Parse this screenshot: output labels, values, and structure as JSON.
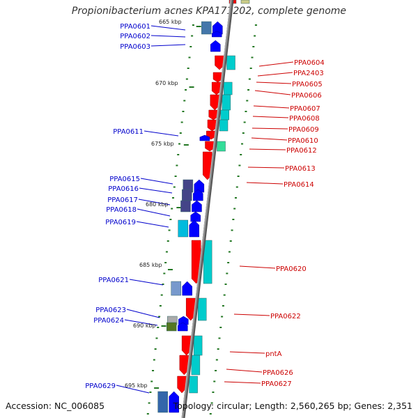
{
  "title": "Propionibacterium acnes KPA171202, complete genome",
  "accession_text": "Accession: NC_006085",
  "topology_text": "Topology: circular; Length: 2,560,265 bp; Genes: 2,351",
  "colors": {
    "backbone": "#888888",
    "forward_gene": "#ff0000",
    "reverse_gene": "#0000ff",
    "cds_forward": "#00cccc",
    "ticks": "#227722",
    "label_forward": "#cc0000",
    "label_reverse": "#0000cc"
  },
  "scale_labels": [
    "665 kbp",
    "670 kbp",
    "675 kbp",
    "680 kbp",
    "685 kbp",
    "690 kbp",
    "695 kbp"
  ],
  "reverse_genes": [
    "PPA0601",
    "PPA0602",
    "PPA0603",
    "PPA0611",
    "PPA0615",
    "PPA0616",
    "PPA0617",
    "PPA0618",
    "PPA0619",
    "PPA0621",
    "PPA0623",
    "PPA0624",
    "PPA0629"
  ],
  "forward_genes": [
    "PPA0604",
    "PPA2403",
    "PPA0605",
    "PPA0606",
    "PPA0607",
    "PPA0608",
    "PPA0609",
    "PPA0610",
    "PPA0612",
    "PPA0613",
    "PPA0614",
    "PPA0620",
    "PPA0622",
    "pntA",
    "PPA0626",
    "PPA0627"
  ]
}
